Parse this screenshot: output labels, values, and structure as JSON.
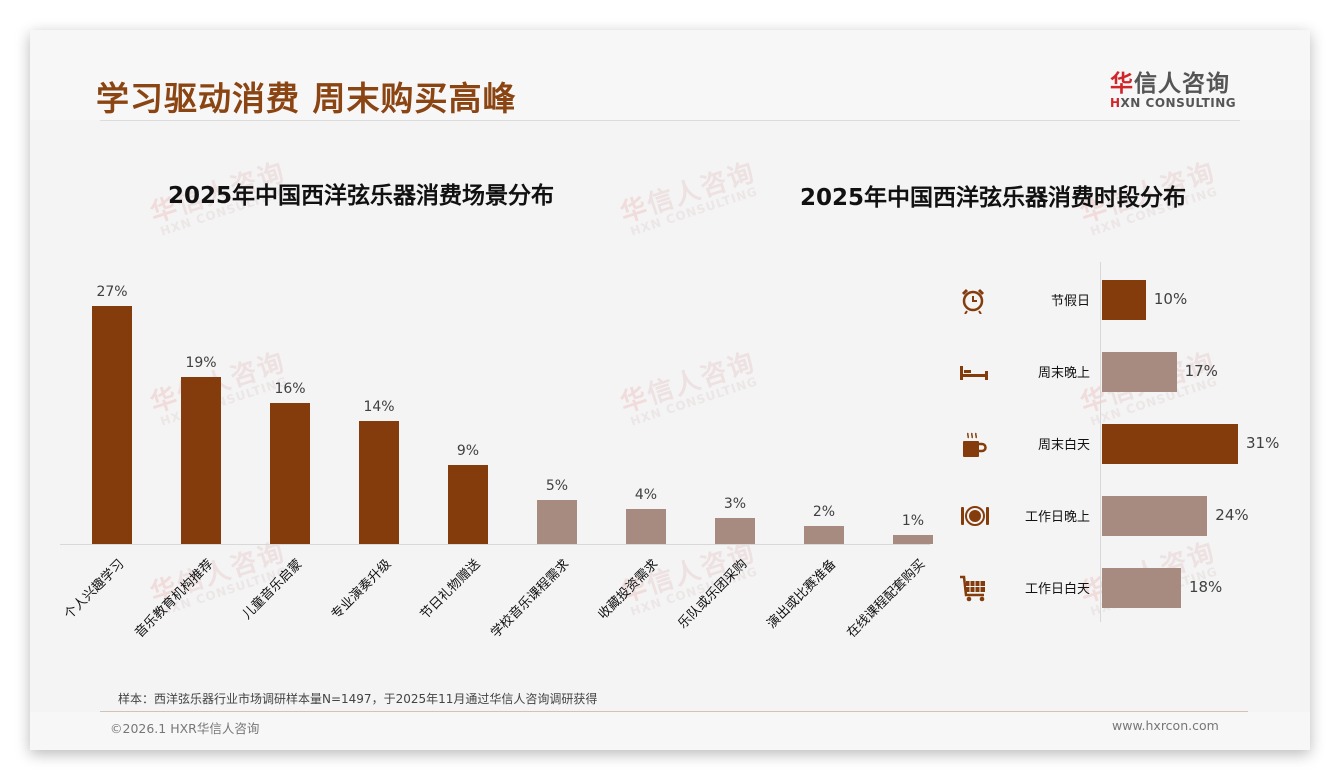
{
  "header": {
    "title": "学习驱动消费 周末购买高峰",
    "logo_cn_prefix": "华",
    "logo_cn_rest": "信人咨询",
    "logo_en_prefix": "H",
    "logo_en_rest": "XN CONSULTING"
  },
  "watermark": {
    "cn_prefix": "华",
    "cn_rest": "信人咨询",
    "en": "HXN CONSULTING"
  },
  "colors": {
    "accent": "#843c0c",
    "muted": "#a88b80",
    "title": "#8b4513",
    "logo_red": "#d0262b"
  },
  "chart_data": [
    {
      "type": "bar",
      "title": "2025年中国西洋弦乐器消费场景分布",
      "categories": [
        "个人兴趣学习",
        "音乐教育机构推荐",
        "儿童音乐启蒙",
        "专业演奏升级",
        "节日礼物赠送",
        "学校音乐课程需求",
        "收藏投资需求",
        "乐队或乐团采购",
        "演出或比赛准备",
        "在线课程配套购买"
      ],
      "values": [
        27,
        19,
        16,
        14,
        9,
        5,
        4,
        3,
        2,
        1
      ],
      "labels": [
        "27%",
        "19%",
        "16%",
        "14%",
        "9%",
        "5%",
        "4%",
        "3%",
        "2%",
        "1%"
      ],
      "highlight": [
        true,
        true,
        true,
        true,
        true,
        false,
        false,
        false,
        false,
        false
      ],
      "xlabel": "",
      "ylabel": "",
      "unit": "%",
      "grid": false,
      "legend": null
    },
    {
      "type": "bar",
      "orientation": "horizontal",
      "title": "2025年中国西洋弦乐器消费时段分布",
      "categories": [
        "节假日",
        "周末晚上",
        "周末白天",
        "工作日晚上",
        "工作日白天"
      ],
      "values": [
        10,
        17,
        31,
        24,
        18
      ],
      "labels": [
        "10%",
        "17%",
        "31%",
        "24%",
        "18%"
      ],
      "icons": [
        "alarm-clock-icon",
        "bed-icon",
        "coffee-cup-icon",
        "plate-cutlery-icon",
        "shopping-cart-icon"
      ],
      "highlight": [
        true,
        false,
        true,
        false,
        false
      ],
      "unit": "%",
      "grid": false,
      "legend": null
    }
  ],
  "footer": {
    "note": "样本：西洋弦乐器行业市场调研样本量N=1497，于2025年11月通过华信人咨询调研获得",
    "copyright": "©2026.1 HXR华信人咨询",
    "site": "www.hxrcon.com"
  }
}
